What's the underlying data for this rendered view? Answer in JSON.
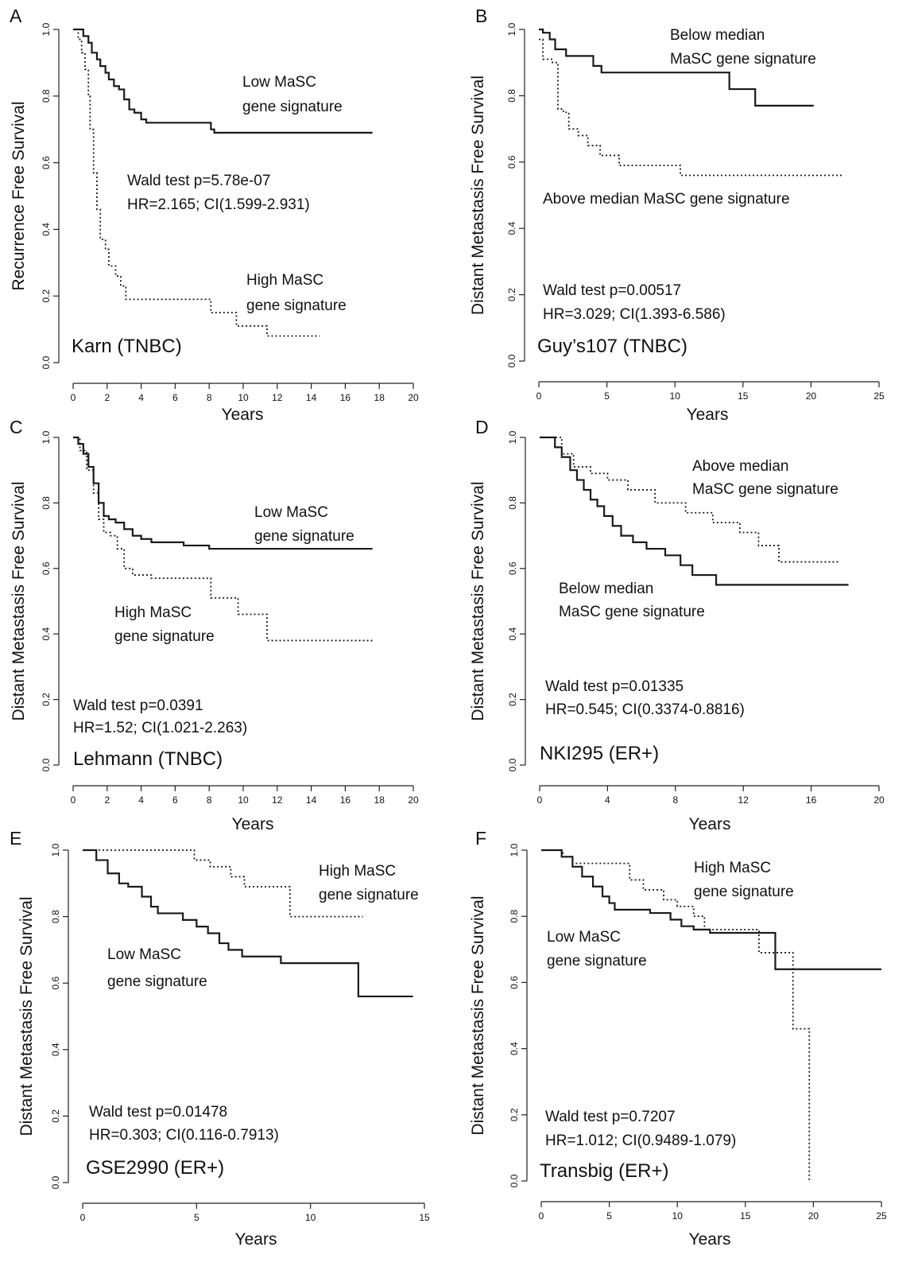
{
  "chart_data": [
    {
      "type": "line",
      "panel": "A",
      "dataset_label": "Karn (TNBC)",
      "xlabel": "Years",
      "ylabel": "Recurrence Free Survival",
      "xlim": [
        0,
        20
      ],
      "ylim": [
        0,
        1
      ],
      "xticks": [
        "0",
        "2",
        "4",
        "6",
        "8",
        "10",
        "12",
        "14",
        "16",
        "18",
        "20"
      ],
      "yticks": [
        "0.0",
        "0.2",
        "0.4",
        "0.6",
        "0.8",
        "1.0"
      ],
      "stats": [
        "Wald test p=5.78e-07",
        "HR=2.165; CI(1.599-2.931)"
      ],
      "series": [
        {
          "name": "Low MaSC gene signature",
          "style": "solid",
          "x": [
            0,
            0.6,
            0.9,
            1.1,
            1.4,
            1.6,
            1.9,
            2.1,
            2.4,
            2.7,
            3.0,
            3.3,
            3.6,
            4.0,
            4.3,
            8.1,
            8.3,
            17.6
          ],
          "y": [
            1.0,
            0.98,
            0.96,
            0.93,
            0.91,
            0.89,
            0.87,
            0.85,
            0.83,
            0.82,
            0.79,
            0.76,
            0.75,
            0.73,
            0.72,
            0.7,
            0.69,
            0.69
          ]
        },
        {
          "name": "High MaSC gene signature",
          "style": "dotted",
          "x": [
            0,
            0.3,
            0.5,
            0.7,
            0.9,
            1.0,
            1.2,
            1.4,
            1.6,
            1.9,
            2.1,
            2.5,
            2.8,
            3.1,
            8.1,
            9.6,
            11.4,
            14.5
          ],
          "y": [
            1.0,
            0.97,
            0.93,
            0.88,
            0.8,
            0.7,
            0.57,
            0.46,
            0.37,
            0.34,
            0.29,
            0.26,
            0.23,
            0.19,
            0.15,
            0.11,
            0.08,
            0.08
          ]
        }
      ],
      "annotations": [
        {
          "lines": [
            "Low MaSC",
            "gene signature"
          ]
        },
        {
          "lines": [
            "High MaSC",
            "gene signature"
          ]
        }
      ]
    },
    {
      "type": "line",
      "panel": "B",
      "dataset_label": "Guy’s107 (TNBC)",
      "xlabel": "Years",
      "ylabel": "Distant Metastasis Free Survival",
      "xlim": [
        0,
        25
      ],
      "ylim": [
        0,
        1
      ],
      "xticks": [
        "0",
        "5",
        "10",
        "15",
        "20",
        "25"
      ],
      "yticks": [
        "0.0",
        "0.2",
        "0.4",
        "0.6",
        "0.8",
        "1.0"
      ],
      "stats": [
        "Wald test p=0.00517",
        "HR=3.029; CI(1.393-6.586)"
      ],
      "series": [
        {
          "name": "Below median MaSC gene signature",
          "style": "solid",
          "x": [
            0,
            0.3,
            0.8,
            1.2,
            2.0,
            4.0,
            4.6,
            14.0,
            15.9,
            20.2
          ],
          "y": [
            1.0,
            0.99,
            0.97,
            0.94,
            0.92,
            0.89,
            0.87,
            0.82,
            0.77,
            0.77
          ]
        },
        {
          "name": "Above median MaSC gene signature",
          "style": "dotted",
          "x": [
            0,
            0.3,
            1.0,
            1.4,
            1.8,
            2.2,
            2.9,
            3.6,
            4.5,
            5.9,
            10.4,
            22.3
          ],
          "y": [
            0.97,
            0.91,
            0.9,
            0.76,
            0.75,
            0.7,
            0.68,
            0.65,
            0.62,
            0.59,
            0.56,
            0.56
          ]
        }
      ],
      "annotations": [
        {
          "lines": [
            "Below median",
            "MaSC gene signature"
          ]
        },
        {
          "lines": [
            "Above median MaSC gene signature"
          ]
        }
      ]
    },
    {
      "type": "line",
      "panel": "C",
      "dataset_label": "Lehmann (TNBC)",
      "xlabel": "Years",
      "ylabel": "Distant Metastasis Free Survival",
      "xlim": [
        0,
        20
      ],
      "ylim": [
        0,
        1
      ],
      "xticks": [
        "0",
        "2",
        "4",
        "6",
        "8",
        "10",
        "12",
        "14",
        "16",
        "18",
        "20"
      ],
      "yticks": [
        "0.0",
        "0.2",
        "0.4",
        "0.6",
        "0.8",
        "1.0"
      ],
      "stats": [
        "Wald test p=0.0391",
        "HR=1.52; CI(1.021-2.263)"
      ],
      "series": [
        {
          "name": "Low MaSC gene signature",
          "style": "solid",
          "x": [
            0,
            0.3,
            0.6,
            0.9,
            1.2,
            1.5,
            1.8,
            2.1,
            2.5,
            3.0,
            3.5,
            4.0,
            4.6,
            6.5,
            8.0,
            17.6
          ],
          "y": [
            1.0,
            0.98,
            0.95,
            0.91,
            0.86,
            0.8,
            0.76,
            0.75,
            0.74,
            0.72,
            0.7,
            0.69,
            0.68,
            0.67,
            0.66,
            0.66
          ]
        },
        {
          "name": "High MaSC gene signature",
          "style": "dotted",
          "x": [
            0,
            0.4,
            0.8,
            1.2,
            1.5,
            1.8,
            2.2,
            2.6,
            3.0,
            3.5,
            4.6,
            8.1,
            9.7,
            11.4,
            17.6
          ],
          "y": [
            1.0,
            0.96,
            0.9,
            0.83,
            0.75,
            0.71,
            0.7,
            0.66,
            0.6,
            0.58,
            0.57,
            0.51,
            0.46,
            0.38,
            0.38
          ]
        }
      ],
      "annotations": [
        {
          "lines": [
            "Low MaSC",
            "gene signature"
          ]
        },
        {
          "lines": [
            "High MaSC",
            "gene signature"
          ]
        }
      ]
    },
    {
      "type": "line",
      "panel": "D",
      "dataset_label": "NKI295 (ER+)",
      "xlabel": "Years",
      "ylabel": "Distant Metastasis Free Survival",
      "xlim": [
        0,
        20
      ],
      "ylim": [
        0,
        1
      ],
      "xticks": [
        "0",
        "4",
        "8",
        "12",
        "16",
        "20"
      ],
      "yticks": [
        "0.0",
        "0.2",
        "0.4",
        "0.6",
        "0.8",
        "1.0"
      ],
      "stats": [
        "Wald test p=0.01335",
        "HR=0.545; CI(0.3374-0.8816)"
      ],
      "series": [
        {
          "name": "Below median MaSC gene signature",
          "style": "solid",
          "x": [
            0,
            0.9,
            1.3,
            1.8,
            2.2,
            2.6,
            3.0,
            3.4,
            3.8,
            4.3,
            4.8,
            5.5,
            6.3,
            7.4,
            8.3,
            9.0,
            10.4,
            18.2
          ],
          "y": [
            1.0,
            0.97,
            0.94,
            0.9,
            0.87,
            0.84,
            0.81,
            0.79,
            0.76,
            0.73,
            0.7,
            0.68,
            0.66,
            0.64,
            0.61,
            0.58,
            0.55,
            0.55
          ]
        },
        {
          "name": "Above median MaSC gene signature",
          "style": "dotted",
          "x": [
            0,
            1.3,
            2.0,
            3.0,
            4.0,
            5.2,
            6.8,
            8.6,
            10.2,
            11.8,
            12.9,
            14.1,
            17.7
          ],
          "y": [
            1.0,
            0.95,
            0.91,
            0.89,
            0.87,
            0.84,
            0.8,
            0.77,
            0.74,
            0.71,
            0.67,
            0.62,
            0.62
          ]
        }
      ],
      "annotations": [
        {
          "lines": [
            "Above median",
            "MaSC gene signature"
          ]
        },
        {
          "lines": [
            "Below median",
            "MaSC gene signature"
          ]
        }
      ]
    },
    {
      "type": "line",
      "panel": "E",
      "dataset_label": "GSE2990 (ER+)",
      "xlabel": "Years",
      "ylabel": "Distant Metastasis Free Survival",
      "xlim": [
        0,
        15
      ],
      "ylim": [
        0,
        1
      ],
      "xticks": [
        "0",
        "5",
        "10",
        "15"
      ],
      "yticks": [
        "0.0",
        "0.2",
        "0.4",
        "0.6",
        "0.8",
        "1.0"
      ],
      "stats": [
        "Wald test p=0.01478",
        "HR=0.303; CI(0.116-0.7913)"
      ],
      "series": [
        {
          "name": "Low MaSC gene signature",
          "style": "solid",
          "x": [
            0,
            0.6,
            1.1,
            1.6,
            2.0,
            2.6,
            3.0,
            3.3,
            3.6,
            4.4,
            5.0,
            5.5,
            6.0,
            6.4,
            7.0,
            8.7,
            12.1,
            14.5
          ],
          "y": [
            1.0,
            0.97,
            0.93,
            0.9,
            0.89,
            0.86,
            0.83,
            0.81,
            0.81,
            0.79,
            0.77,
            0.75,
            0.72,
            0.7,
            0.68,
            0.66,
            0.56,
            0.56
          ]
        },
        {
          "name": "High MaSC gene signature",
          "style": "dotted",
          "x": [
            0,
            4.9,
            5.6,
            6.5,
            7.1,
            9.1,
            12.3
          ],
          "y": [
            1.0,
            0.97,
            0.95,
            0.92,
            0.89,
            0.8,
            0.8
          ]
        }
      ],
      "annotations": [
        {
          "lines": [
            "High MaSC",
            "gene signature"
          ]
        },
        {
          "lines": [
            "Low MaSC",
            "gene signature"
          ]
        }
      ]
    },
    {
      "type": "line",
      "panel": "F",
      "dataset_label": "Transbig (ER+)",
      "xlabel": "Years",
      "ylabel": "Distant Metastasis Free Survival",
      "xlim": [
        0,
        25
      ],
      "ylim": [
        0,
        1
      ],
      "xticks": [
        "0",
        "5",
        "10",
        "15",
        "20",
        "25"
      ],
      "yticks": [
        "0.0",
        "0.2",
        "0.4",
        "0.6",
        "0.8",
        "1.0"
      ],
      "stats": [
        "Wald test p=0.7207",
        "HR=1.012; CI(0.9489-1.079)"
      ],
      "series": [
        {
          "name": "Low MaSC gene signature",
          "style": "solid",
          "x": [
            0,
            1.5,
            2.3,
            3.0,
            3.8,
            4.5,
            5.0,
            5.4,
            8.0,
            9.5,
            10.3,
            11.2,
            12.4,
            17.2,
            25.0
          ],
          "y": [
            1.0,
            0.98,
            0.95,
            0.92,
            0.89,
            0.86,
            0.84,
            0.82,
            0.81,
            0.79,
            0.77,
            0.76,
            0.75,
            0.64,
            0.64
          ]
        },
        {
          "name": "High MaSC gene signature",
          "style": "dotted",
          "x": [
            0,
            1.6,
            2.3,
            6.5,
            7.5,
            9.0,
            10.0,
            11.2,
            12.0,
            16.0,
            18.5,
            19.7,
            19.8
          ],
          "y": [
            1.0,
            0.98,
            0.96,
            0.91,
            0.88,
            0.85,
            0.83,
            0.8,
            0.76,
            0.69,
            0.46,
            0.0,
            0.0
          ]
        }
      ],
      "annotations": [
        {
          "lines": [
            "High MaSC",
            "gene signature"
          ]
        },
        {
          "lines": [
            "Low MaSC",
            "gene signature"
          ]
        }
      ]
    }
  ]
}
